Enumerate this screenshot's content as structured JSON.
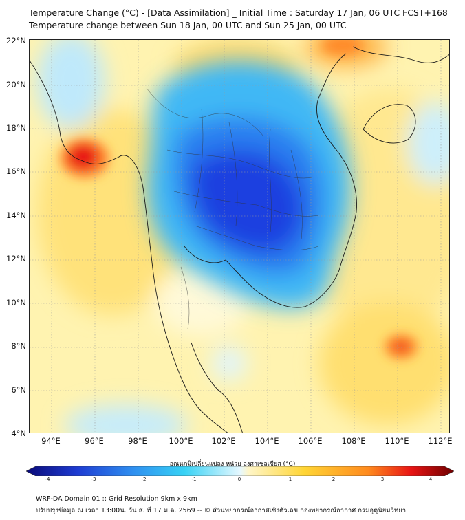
{
  "title": {
    "line1": "Temperature Change (°C) - [Data Assimilation] _ Initial Time : Saturday 17 Jan, 06 UTC FCST+168",
    "line2": "Temperature change between Sun 18 Jan, 00 UTC and Sun 25 Jan, 00 UTC"
  },
  "axes": {
    "lat_labels": [
      "22°N",
      "20°N",
      "18°N",
      "16°N",
      "14°N",
      "12°N",
      "10°N",
      "8°N",
      "6°N",
      "4°N"
    ],
    "lon_labels": [
      "94°E",
      "96°E",
      "98°E",
      "100°E",
      "102°E",
      "104°E",
      "106°E",
      "108°E",
      "110°E",
      "112°E"
    ],
    "lat_range": [
      4,
      22
    ],
    "lon_range": [
      93,
      112.5
    ]
  },
  "colorbar": {
    "label": "อุณหภูมิเปลี่ยนแปลง หน่วย องศาเซลเซียส (°C)",
    "ticks": [
      "-4",
      "-3",
      "-2",
      "-1",
      "0",
      "1",
      "2",
      "3",
      "4"
    ],
    "range": [
      -4,
      4
    ],
    "colors": [
      "#0a0a78",
      "#1e3cd2",
      "#2f8ff0",
      "#37d2f5",
      "#e6f8ff",
      "#fff6c8",
      "#ffd535",
      "#ff8a1e",
      "#e81414",
      "#6e0000"
    ]
  },
  "map": {
    "description_colors": {
      "cooling": "#1e50e6",
      "warming": "#ffd535",
      "hotspot": "#e81414"
    }
  },
  "footer": {
    "line1": "WRF-DA Domain 01 :: Grid Resolution 9km x 9km",
    "line2": "ปรับปรุงข้อมูล ณ เวลา 13:00น. วัน ส. ที่ 17 ม.ค. 2569 -- © ส่วนพยากรณ์อากาศเชิงตัวเลข กองพยากรณ์อากาศ กรมอุตุนิยมวิทยา"
  }
}
